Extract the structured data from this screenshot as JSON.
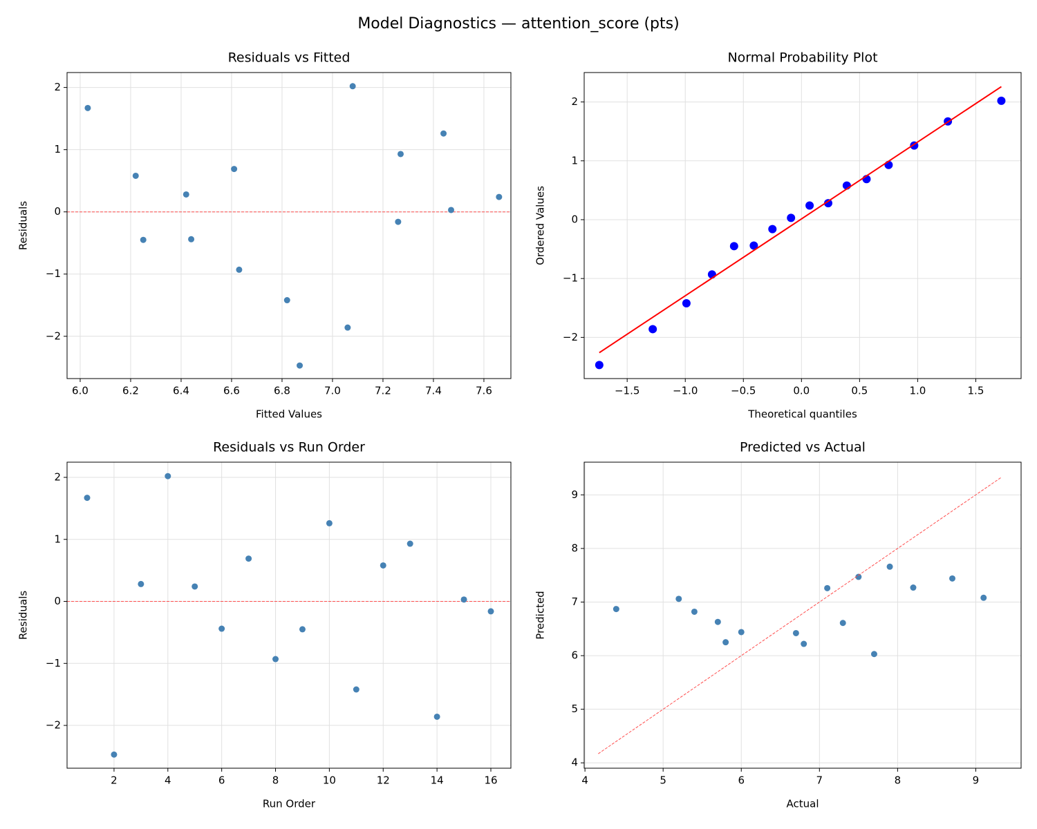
{
  "title": "Model Diagnostics — attention_score (pts)",
  "chart_data": [
    {
      "type": "scatter",
      "title": "Residuals vs Fitted",
      "x_label": "Fitted Values",
      "y_label": "Residuals",
      "x": [
        6.03,
        6.87,
        6.42,
        7.08,
        7.66,
        6.44,
        6.61,
        6.63,
        6.25,
        7.44,
        6.82,
        6.22,
        7.27,
        7.06,
        7.47,
        7.26
      ],
      "y": [
        1.67,
        -2.47,
        0.28,
        2.02,
        0.24,
        -0.44,
        0.69,
        -0.93,
        -0.45,
        1.26,
        -1.42,
        0.58,
        0.93,
        -1.86,
        0.03,
        -0.16
      ],
      "color": "#4682b4",
      "hline": 0,
      "hline_color": "#ff4d4d",
      "xlim": [
        5.948,
        7.707
      ],
      "ylim": [
        -2.68,
        2.24
      ],
      "xticks": [
        {
          "value": 6,
          "label": "6.0"
        },
        {
          "value": 6.2,
          "label": "6.2"
        },
        {
          "value": 6.4,
          "label": "6.4"
        },
        {
          "value": 6.6,
          "label": "6.6"
        },
        {
          "value": 6.8,
          "label": "6.8"
        },
        {
          "value": 7,
          "label": "7.0"
        },
        {
          "value": 7.2,
          "label": "7.2"
        },
        {
          "value": 7.4,
          "label": "7.4"
        },
        {
          "value": 7.6,
          "label": "7.6"
        }
      ],
      "yticks": [
        {
          "value": -2,
          "label": "−2"
        },
        {
          "value": -1,
          "label": "−1"
        },
        0,
        1,
        2
      ],
      "grid": true
    },
    {
      "type": "scatter",
      "title": "Normal Probability Plot",
      "x_label": "Theoretical quantiles",
      "y_label": "Ordered Values",
      "x": [
        -1.74,
        -1.28,
        -0.99,
        -0.77,
        -0.58,
        -0.41,
        -0.25,
        -0.09,
        0.07,
        0.23,
        0.39,
        0.56,
        0.75,
        0.97,
        1.26,
        1.72
      ],
      "y": [
        -2.47,
        -1.86,
        -1.42,
        -0.93,
        -0.45,
        -0.44,
        -0.16,
        0.03,
        0.24,
        0.28,
        0.58,
        0.69,
        0.93,
        1.26,
        1.67,
        2.02
      ],
      "color": "#0000ff",
      "lines": [
        {
          "x": [
            -1.74,
            1.72
          ],
          "y": [
            -2.26,
            2.26
          ],
          "color": "#ff0000",
          "dashed": false
        }
      ],
      "xlim": [
        -1.87,
        1.89
      ],
      "ylim": [
        -2.7,
        2.5
      ],
      "xticks": [
        {
          "value": -1.5,
          "label": "−1.5"
        },
        {
          "value": -1,
          "label": "−1.0"
        },
        {
          "value": -0.5,
          "label": "−0.5"
        },
        {
          "value": 0,
          "label": "0.0"
        },
        0.5,
        {
          "value": 1,
          "label": "1.0"
        },
        1.5
      ],
      "yticks": [
        {
          "value": -2,
          "label": "−2"
        },
        {
          "value": -1,
          "label": "−1"
        },
        0,
        1,
        2
      ],
      "grid": true
    },
    {
      "type": "scatter",
      "title": "Residuals vs Run Order",
      "x_label": "Run Order",
      "y_label": "Residuals",
      "x": [
        1,
        2,
        3,
        4,
        5,
        6,
        7,
        8,
        9,
        10,
        11,
        12,
        13,
        14,
        15,
        16
      ],
      "y": [
        1.67,
        -2.47,
        0.28,
        2.02,
        0.24,
        -0.44,
        0.69,
        -0.93,
        -0.45,
        1.26,
        -1.42,
        0.58,
        0.93,
        -1.86,
        0.03,
        -0.16
      ],
      "color": "#4682b4",
      "hline": 0,
      "hline_color": "#ff4d4d",
      "xlim": [
        0.255,
        16.745
      ],
      "ylim": [
        -2.69,
        2.245
      ],
      "xticks": [
        2,
        4,
        6,
        8,
        10,
        12,
        14,
        16
      ],
      "yticks": [
        {
          "value": -2,
          "label": "−2"
        },
        {
          "value": -1,
          "label": "−1"
        },
        0,
        1,
        2
      ],
      "grid": true
    },
    {
      "type": "scatter",
      "title": "Predicted vs Actual",
      "x_label": "Actual",
      "y_label": "Predicted",
      "x": [
        7.7,
        4.4,
        6.7,
        9.1,
        7.9,
        6.0,
        7.3,
        5.7,
        5.8,
        8.7,
        5.4,
        6.8,
        8.2,
        5.2,
        7.5,
        7.1
      ],
      "y": [
        6.03,
        6.87,
        6.42,
        7.08,
        7.66,
        6.44,
        6.61,
        6.63,
        6.25,
        7.44,
        6.82,
        6.22,
        7.27,
        7.06,
        7.47,
        7.26
      ],
      "color": "#4682b4",
      "lines": [
        {
          "x": [
            4.17,
            9.33
          ],
          "y": [
            4.17,
            9.33
          ],
          "color": "#ff4d4d",
          "dashed": true
        }
      ],
      "xlim": [
        3.99,
        9.58
      ],
      "ylim": [
        3.9,
        9.61
      ],
      "xticks": [
        4,
        5,
        6,
        7,
        8,
        9
      ],
      "yticks": [
        4,
        5,
        6,
        7,
        8,
        9
      ],
      "grid": true
    }
  ]
}
